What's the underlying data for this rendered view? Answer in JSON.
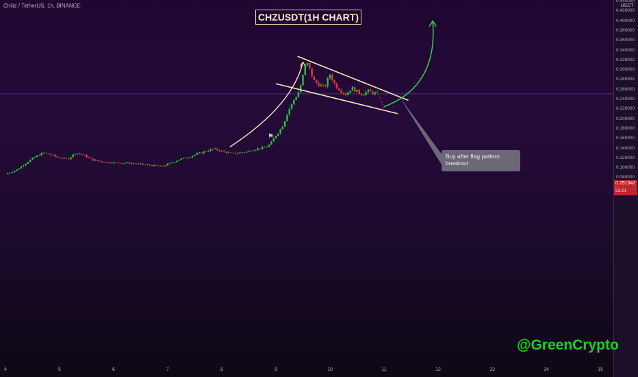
{
  "header": {
    "symbol": "Chiliz / TetherUS, 1h, BINANCE"
  },
  "title_box": "CHZUSDT(1H CHART)",
  "axis": {
    "unit": "USDT",
    "price_ticks": [
      "0.440000",
      "0.420000",
      "0.400000",
      "0.380000",
      "0.360000",
      "0.340000",
      "0.320000",
      "0.300000",
      "0.280000",
      "0.260000",
      "0.240000",
      "0.220000",
      "0.200000",
      "0.180000",
      "0.160000",
      "0.140000",
      "0.120000",
      "0.100000",
      "0.080000"
    ],
    "date_ticks": [
      "4",
      "5",
      "6",
      "7",
      "8",
      "9",
      "10",
      "11",
      "12",
      "13",
      "14",
      "15"
    ]
  },
  "current_price": {
    "price": "0.251342",
    "timer": "53:21",
    "color": "#c0262c"
  },
  "annotation": "Buy after flag pattern breakout",
  "watermark": "@GreenCrypto",
  "flag_icon": "flag-icon",
  "colors": {
    "up": "#26c63a",
    "down": "#e0383e",
    "trendline": "#f3e9b2",
    "arrow": "#2ed64a"
  },
  "chart_data": {
    "type": "candlestick",
    "title": "CHZUSDT(1H CHART)",
    "ylabel": "USDT",
    "ylim": [
      0.07,
      0.44
    ],
    "xlim": [
      4,
      15
    ],
    "x_unit": "day",
    "ohlc_x_step": "1h",
    "ohlc_start_x": 4.0,
    "ohlc_path": [
      [
        4.0,
        0.087
      ],
      [
        4.2,
        0.096
      ],
      [
        4.4,
        0.112
      ],
      [
        4.55,
        0.123
      ],
      [
        4.7,
        0.131
      ],
      [
        4.8,
        0.129
      ],
      [
        4.95,
        0.122
      ],
      [
        5.15,
        0.118
      ],
      [
        5.3,
        0.131
      ],
      [
        5.45,
        0.126
      ],
      [
        5.6,
        0.117
      ],
      [
        5.8,
        0.112
      ],
      [
        6.0,
        0.111
      ],
      [
        6.3,
        0.11
      ],
      [
        6.55,
        0.107
      ],
      [
        6.9,
        0.103
      ],
      [
        7.05,
        0.11
      ],
      [
        7.2,
        0.117
      ],
      [
        7.4,
        0.123
      ],
      [
        7.55,
        0.129
      ],
      [
        7.7,
        0.134
      ],
      [
        7.85,
        0.139
      ],
      [
        8.05,
        0.133
      ],
      [
        8.2,
        0.129
      ],
      [
        8.45,
        0.133
      ],
      [
        8.6,
        0.138
      ],
      [
        8.8,
        0.142
      ],
      [
        8.9,
        0.149
      ],
      [
        9.0,
        0.167
      ],
      [
        9.08,
        0.178
      ],
      [
        9.15,
        0.192
      ],
      [
        9.22,
        0.215
      ],
      [
        9.3,
        0.232
      ],
      [
        9.38,
        0.246
      ],
      [
        9.45,
        0.265
      ],
      [
        9.52,
        0.3
      ],
      [
        9.57,
        0.316
      ],
      [
        9.63,
        0.3
      ],
      [
        9.7,
        0.278
      ],
      [
        9.8,
        0.27
      ],
      [
        9.9,
        0.264
      ],
      [
        10.0,
        0.291
      ],
      [
        10.1,
        0.268
      ],
      [
        10.2,
        0.258
      ],
      [
        10.3,
        0.25
      ],
      [
        10.4,
        0.264
      ],
      [
        10.5,
        0.256
      ],
      [
        10.6,
        0.25
      ],
      [
        10.7,
        0.257
      ],
      [
        10.8,
        0.253
      ],
      [
        10.9,
        0.251
      ]
    ],
    "drawings": {
      "flag_upper": [
        [
          9.4,
          0.328
        ],
        [
          11.45,
          0.238
        ]
      ],
      "flag_lower": [
        [
          9.0,
          0.272
        ],
        [
          11.25,
          0.211
        ]
      ],
      "curve_start": [
        8.15,
        0.143
      ],
      "curve_end": [
        9.5,
        0.316
      ],
      "projection_dotted": [
        [
          10.9,
          0.251
        ],
        [
          11.0,
          0.222
        ]
      ],
      "breakout_arrow": [
        [
          11.0,
          0.225
        ],
        [
          11.9,
          0.4
        ]
      ],
      "callout_anchor": [
        11.3,
        0.243
      ]
    },
    "current_price": 0.251342
  }
}
